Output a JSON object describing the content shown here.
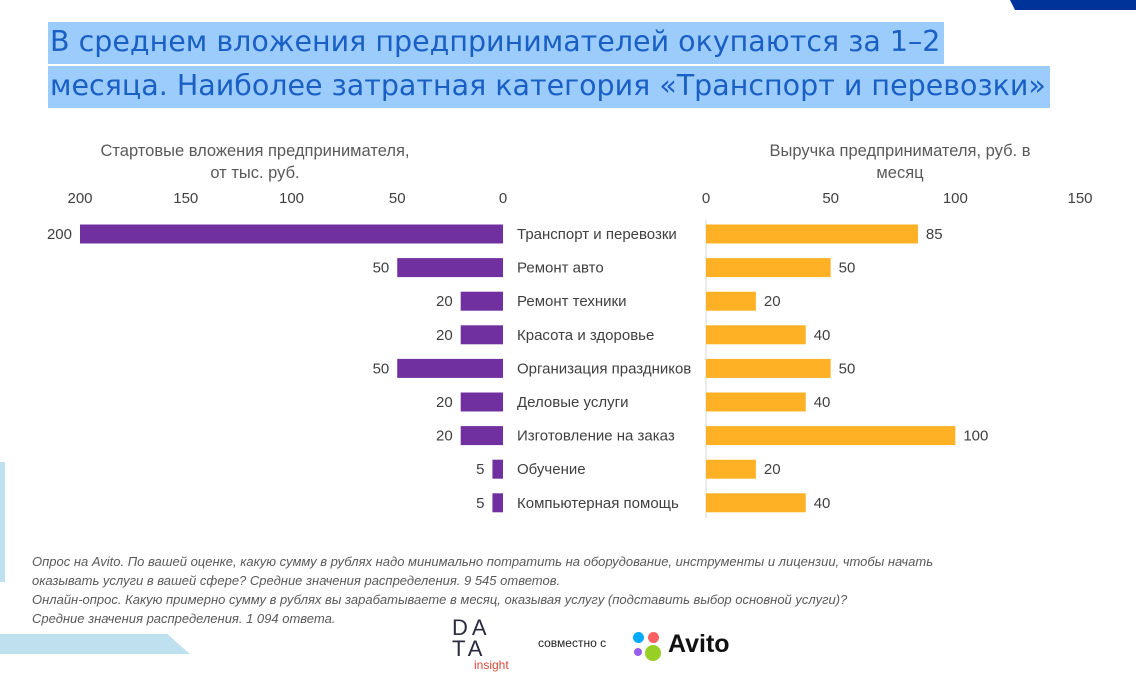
{
  "title_lines": [
    "В среднем вложения предпринимателей окупаются за 1–2",
    "месяца. Наиболее затратная категория «Транспорт и перевозки»"
  ],
  "chart_data": [
    {
      "type": "bar",
      "orientation": "horizontal-reversed",
      "title_lines": [
        "Стартовые вложения предпринимателя,",
        "от тыс. руб."
      ],
      "categories": [
        "Транспорт и перевозки",
        "Ремонт  авто",
        "Ремонт техники",
        "Красота и здоровье",
        "Организация праздников",
        "Деловые услуги",
        "Изготовление на заказ",
        "Обучение",
        "Компьютерная помощь"
      ],
      "values": [
        200,
        50,
        20,
        20,
        50,
        20,
        20,
        5,
        5
      ],
      "xlim": [
        0,
        200
      ],
      "ticks": [
        200,
        150,
        100,
        50,
        0
      ],
      "color": "#7030a0"
    },
    {
      "type": "bar",
      "orientation": "horizontal",
      "title_lines": [
        "Выручка предпринимателя, руб. в",
        "месяц"
      ],
      "categories": [
        "Транспорт и перевозки",
        "Ремонт  авто",
        "Ремонт техники",
        "Красота и здоровье",
        "Организация праздников",
        "Деловые услуги",
        "Изготовление на заказ",
        "Обучение",
        "Компьютерная помощь"
      ],
      "values": [
        85,
        50,
        20,
        40,
        50,
        40,
        100,
        20,
        40
      ],
      "xlim": [
        0,
        150
      ],
      "ticks": [
        0,
        50,
        100,
        150
      ],
      "color": "#ffb126"
    }
  ],
  "notes": [
    "Опрос на Avito. По вашей оценке, какую сумму в рублях надо минимально потратить на оборудование, инструменты и лицензии, чтобы начать",
    "оказывать услуги в вашей сфере? Средние значения распределения. 9 545 ответов.",
    "Онлайн-опрос. Какую примерно сумму в рублях вы зарабатываете в месяц, оказывая услугу (подставить выбор основной услуги)?",
    "Средние значения распределения. 1 094 ответа."
  ],
  "footer": {
    "logo_data": "DATA",
    "logo_insight": "insight",
    "together": "совместно с",
    "avito": "Avito"
  }
}
